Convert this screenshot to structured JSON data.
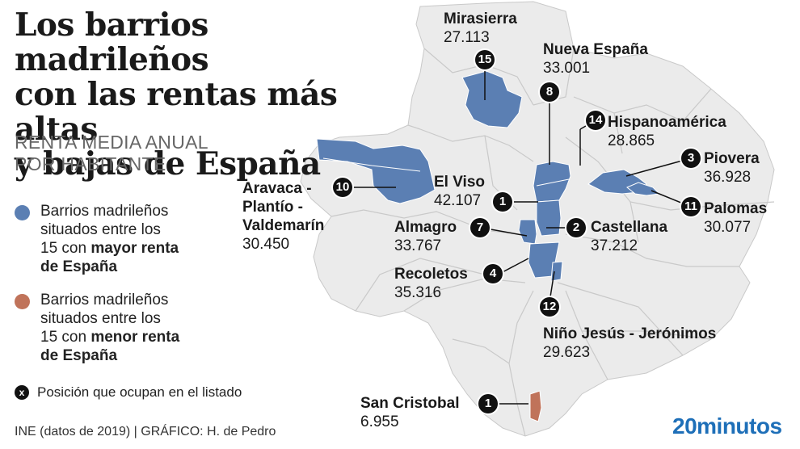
{
  "header": {
    "title_lines": [
      "Los barrios madrileños",
      "con las rentas más altas",
      "y bajas de España"
    ],
    "subtitle_lines": [
      "RENTA MEDIA ANUAL",
      "POR HABITANTE"
    ]
  },
  "legend": {
    "high": {
      "lines": [
        "Barrios madrileños",
        "situados entre los"
      ],
      "last_prefix": "15 con ",
      "bold_a": "mayor renta",
      "bold_b": "de España",
      "color": "#5b7fb3"
    },
    "low": {
      "lines": [
        "Barrios madrileños",
        "situados entre los"
      ],
      "last_prefix": "15 con ",
      "bold_a": "menor renta",
      "bold_b": "de España",
      "color": "#c0735a"
    },
    "position_symbol": "x",
    "position_note": "Posición que ocupan en el listado"
  },
  "footer": {
    "source": "INE (datos de 2019) |  GRÁFICO: H. de Pedro",
    "brand": "20minutos"
  },
  "colors": {
    "map_fill": "#ebebeb",
    "district_line": "#c9c9c9",
    "high": "#5b7fb3",
    "low": "#c0735a",
    "badge": "#111111"
  },
  "neighborhoods": [
    {
      "id": "mirasierra",
      "name": "Mirasierra",
      "value": "27.113",
      "rank": "15",
      "group": "high"
    },
    {
      "id": "nueva-espana",
      "name": "Nueva España",
      "value": "33.001",
      "rank": "8",
      "group": "high"
    },
    {
      "id": "hispanoamerica",
      "name": "Hispanoamérica",
      "value": "28.865",
      "rank": "14",
      "group": "high"
    },
    {
      "id": "piovera",
      "name": "Piovera",
      "value": "36.928",
      "rank": "3",
      "group": "high"
    },
    {
      "id": "palomas",
      "name": "Palomas",
      "value": "30.077",
      "rank": "11",
      "group": "high"
    },
    {
      "id": "aravaca",
      "name_lines": [
        "Aravaca -",
        "Plantío -",
        "Valdemarín"
      ],
      "value": "30.450",
      "rank": "10",
      "group": "high"
    },
    {
      "id": "el-viso",
      "name": "El Viso",
      "value": "42.107",
      "rank": "1",
      "group": "high"
    },
    {
      "id": "almagro",
      "name": "Almagro",
      "value": "33.767",
      "rank": "7",
      "group": "high"
    },
    {
      "id": "castellana",
      "name": "Castellana",
      "value": "37.212",
      "rank": "2",
      "group": "high"
    },
    {
      "id": "recoletos",
      "name": "Recoletos",
      "value": "35.316",
      "rank": "4",
      "group": "high"
    },
    {
      "id": "nino-jesus",
      "name": "Niño Jesús - Jerónimos",
      "value": "29.623",
      "rank": "12",
      "group": "high"
    },
    {
      "id": "san-cristobal",
      "name": "San Cristobal",
      "value": "6.955",
      "rank": "1",
      "group": "low"
    }
  ]
}
